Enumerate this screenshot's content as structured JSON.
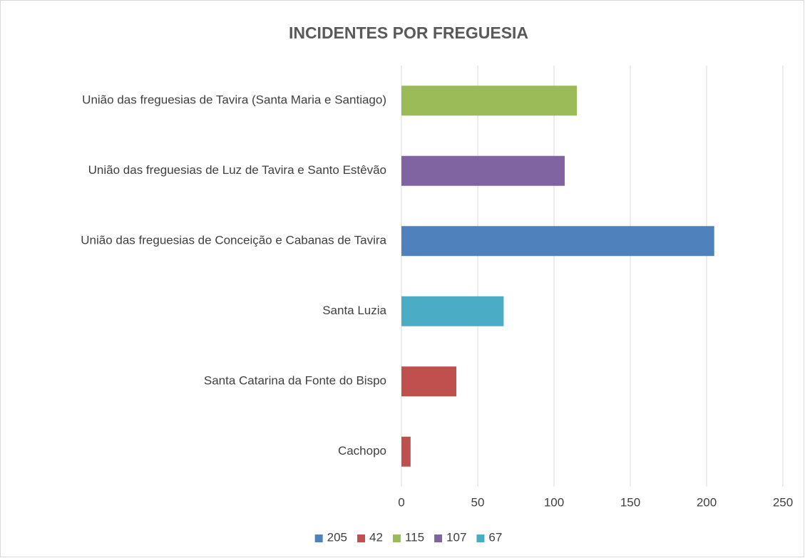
{
  "chart_data": {
    "type": "bar",
    "orientation": "horizontal",
    "title": "INCIDENTES POR FREGUESIA",
    "categories": [
      "Cachopo",
      "Santa Catarina da Fonte do Bispo",
      "Santa Luzia",
      "União das freguesias de Conceição e Cabanas de Tavira",
      "União das freguesias de Luz de Tavira e Santo Estêvão",
      "União das freguesias de Tavira (Santa Maria e Santiago)"
    ],
    "series": [
      {
        "name": "205",
        "color": "#4f81bd",
        "values": [
          null,
          null,
          null,
          205,
          null,
          null
        ]
      },
      {
        "name": "42",
        "color": "#c0504d",
        "values": [
          6,
          36,
          null,
          null,
          null,
          null
        ]
      },
      {
        "name": "115",
        "color": "#9bbb59",
        "values": [
          null,
          null,
          null,
          null,
          null,
          115
        ]
      },
      {
        "name": "107",
        "color": "#8064a2",
        "values": [
          null,
          null,
          null,
          null,
          107,
          null
        ]
      },
      {
        "name": "67",
        "color": "#4bacc6",
        "values": [
          null,
          null,
          67,
          null,
          null,
          null
        ]
      }
    ],
    "xlim": [
      0,
      250
    ],
    "xticks": [
      0,
      50,
      100,
      150,
      200,
      250
    ],
    "grid": true,
    "legend": "bottom"
  }
}
